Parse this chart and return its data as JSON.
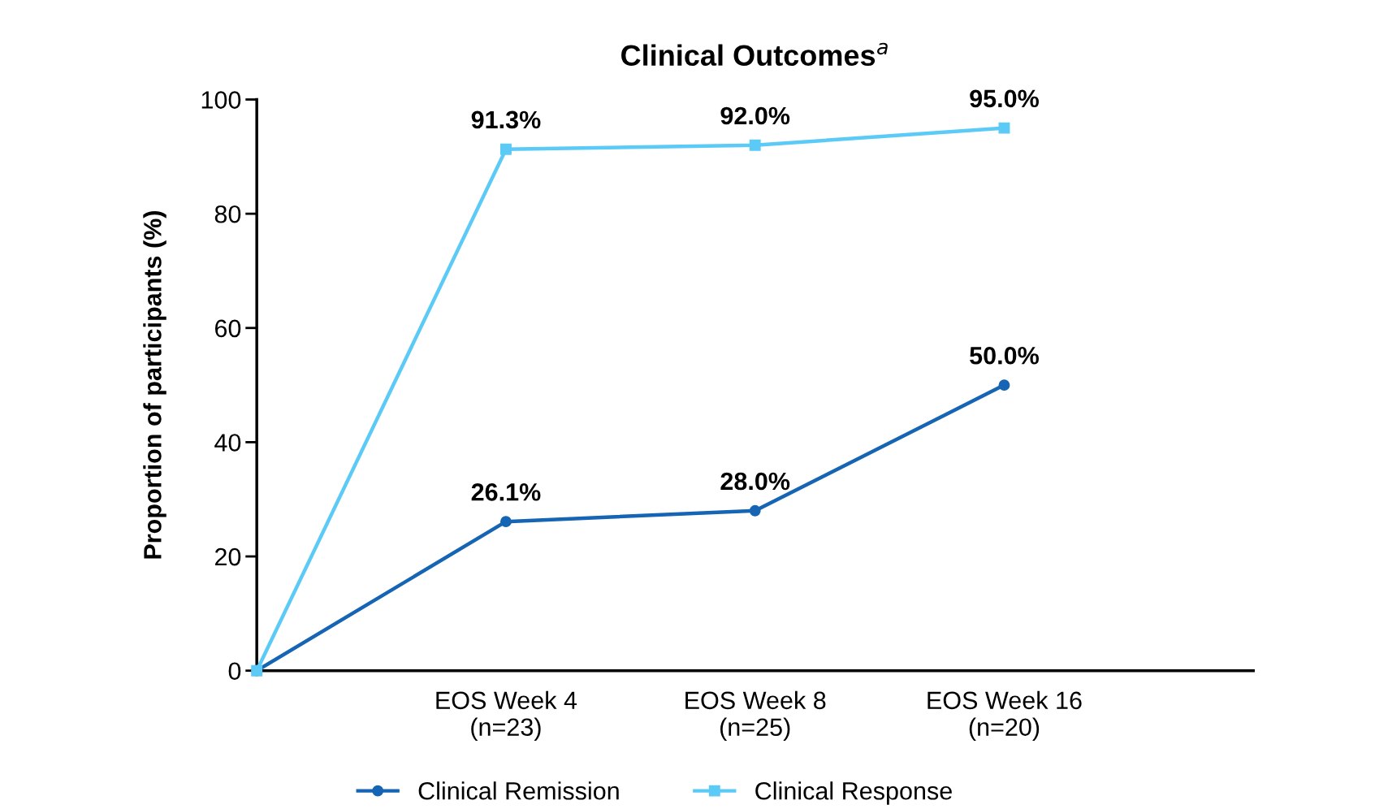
{
  "chart_data": {
    "type": "line",
    "title": "Clinical Outcomes$^{a}$",
    "ylabel": "Proportion of participants (%)",
    "categories": [
      null,
      "EOS Week 4\n(n=23)",
      "EOS Week 8\n(n=25)",
      "EOS Week 16\n(n=20)",
      null
    ],
    "series": [
      {
        "name": "Clinical Remission",
        "color": "#1565b4",
        "marker": "circle",
        "values": [
          0,
          26.1,
          28.0,
          50.0,
          null
        ],
        "value_labels": [
          null,
          "26.1%",
          "28.0%",
          "50.0%",
          null
        ]
      },
      {
        "name": "Clinical Response",
        "color": "#5ccaf7",
        "marker": "square",
        "values": [
          0,
          91.3,
          92.0,
          95.0,
          null
        ],
        "value_labels": [
          null,
          "91.3%",
          "92.0%",
          "95.0%",
          null
        ]
      }
    ],
    "ylim": [
      0,
      100
    ],
    "yticks": [
      0,
      20,
      40,
      60,
      80,
      100
    ],
    "grid": false,
    "legend": "bottom",
    "line_style": "solid"
  }
}
